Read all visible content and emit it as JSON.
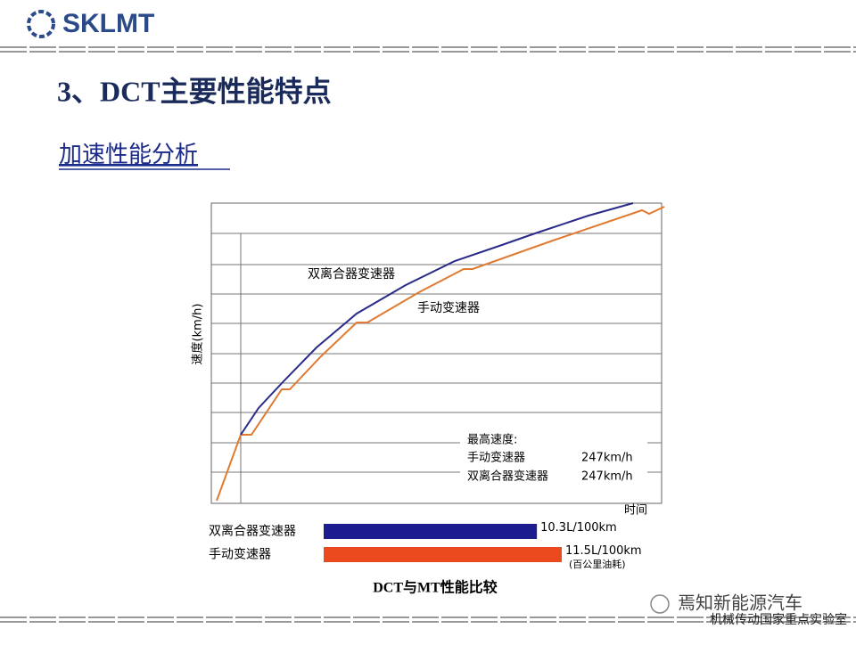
{
  "header": {
    "logo": "SKLMT"
  },
  "title": "3、DCT主要性能特点",
  "subtitle": "加速性能分析",
  "line_chart": {
    "y_label": "速度(km/h)",
    "x_label": "时间",
    "series_labels": [
      "双离合器变速器",
      "手动变速器"
    ],
    "legend": {
      "title": "最高速度:",
      "rows": [
        [
          "手动变速器",
          "247km/h"
        ],
        [
          "双离合器变速器",
          "247km/h"
        ]
      ]
    }
  },
  "chart_data": {
    "type": "bar",
    "orientation": "horizontal",
    "categories": [
      "双离合器变速器",
      "手动变速器"
    ],
    "values": [
      10.3,
      11.5
    ],
    "value_labels": [
      "10.3L/100km",
      "11.5L/100km"
    ],
    "colors": [
      "#1c1c8f",
      "#ea4a1e"
    ],
    "unit_note": "(百公里油耗)",
    "caption": "DCT与MT性能比较"
  },
  "footer": {
    "wechat": "焉知新能源汽车",
    "lab": "机械传动国家重点实验室"
  }
}
